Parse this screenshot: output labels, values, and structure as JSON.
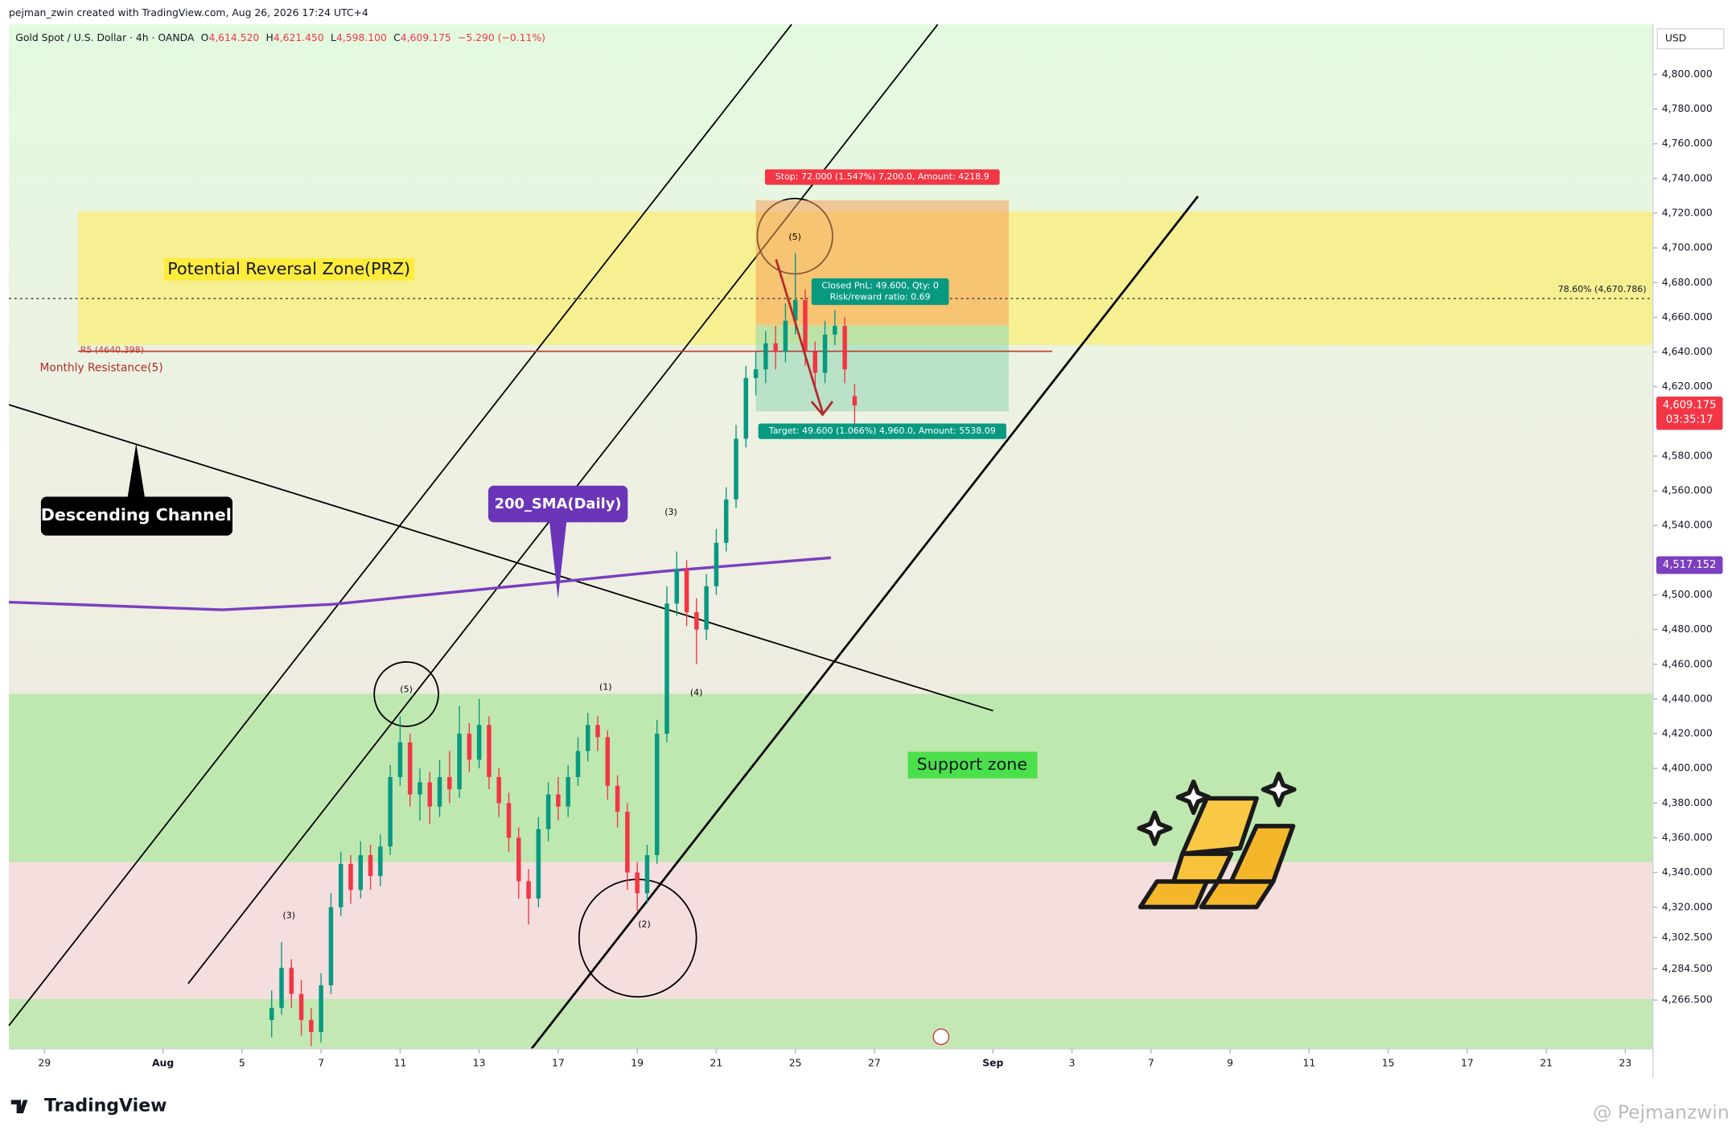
{
  "header": {
    "credit": "pejman_zwin created with TradingView.com, Aug 26, 2026 17:24 UTC+4",
    "symbol": "Gold Spot / U.S. Dollar · 4h · OANDA",
    "ohlc": [
      {
        "key": "O",
        "value": "4,614.520"
      },
      {
        "key": "H",
        "value": "4,621.450"
      },
      {
        "key": "L",
        "value": "4,598.100"
      },
      {
        "key": "C",
        "value": "4,609.175"
      }
    ],
    "change": "−5.290 (−0.11%)"
  },
  "chart_data": {
    "type": "candlestick",
    "currency": "USD",
    "xlim": [
      -0.9,
      40.7
    ],
    "ylim": [
      4238.3,
      4828.8
    ],
    "xticks": [
      {
        "value": 0,
        "label": "29"
      },
      {
        "value": 3,
        "label": "Aug"
      },
      {
        "value": 5,
        "label": "5"
      },
      {
        "value": 7,
        "label": "7"
      },
      {
        "value": 9,
        "label": "11"
      },
      {
        "value": 11,
        "label": "13"
      },
      {
        "value": 13,
        "label": "17"
      },
      {
        "value": 15,
        "label": "19"
      },
      {
        "value": 17,
        "label": "21"
      },
      {
        "value": 19,
        "label": "25"
      },
      {
        "value": 21,
        "label": "27"
      },
      {
        "value": 24,
        "label": "Sep"
      },
      {
        "value": 26,
        "label": "3"
      },
      {
        "value": 28,
        "label": "7"
      },
      {
        "value": 30,
        "label": "9"
      },
      {
        "value": 32,
        "label": "11"
      },
      {
        "value": 34,
        "label": "15"
      },
      {
        "value": 36,
        "label": "17"
      },
      {
        "value": 38,
        "label": "21"
      },
      {
        "value": 40,
        "label": "23"
      }
    ],
    "yticks": [
      {
        "value": 4800,
        "label": "4,800.000"
      },
      {
        "value": 4780,
        "label": "4,780.000"
      },
      {
        "value": 4760,
        "label": "4,760.000"
      },
      {
        "value": 4740,
        "label": "4,740.000"
      },
      {
        "value": 4720,
        "label": "4,720.000"
      },
      {
        "value": 4700,
        "label": "4,700.000"
      },
      {
        "value": 4680,
        "label": "4,680.000"
      },
      {
        "value": 4660,
        "label": "4,660.000"
      },
      {
        "value": 4640,
        "label": "4,640.000"
      },
      {
        "value": 4620,
        "label": "4,620.000"
      },
      {
        "value": 4580,
        "label": "4,580.000"
      },
      {
        "value": 4560,
        "label": "4,560.000"
      },
      {
        "value": 4540,
        "label": "4,540.000"
      },
      {
        "value": 4500,
        "label": "4,500.000"
      },
      {
        "value": 4480,
        "label": "4,480.000"
      },
      {
        "value": 4460,
        "label": "4,460.000"
      },
      {
        "value": 4440,
        "label": "4,440.000"
      },
      {
        "value": 4420,
        "label": "4,420.000"
      },
      {
        "value": 4400,
        "label": "4,400.000"
      },
      {
        "value": 4380,
        "label": "4,380.000"
      },
      {
        "value": 4360,
        "label": "4,360.000"
      },
      {
        "value": 4340,
        "label": "4,340.000"
      },
      {
        "value": 4320,
        "label": "4,320.000"
      },
      {
        "value": 4302.5,
        "label": "4,302.500"
      },
      {
        "value": 4284.5,
        "label": "4,284.500"
      },
      {
        "value": 4266.5,
        "label": "4,266.500"
      }
    ],
    "colors": {
      "up": "#089981",
      "down": "#f23645"
    },
    "candles": {
      "x": [
        5.75,
        6,
        6.25,
        6.5,
        6.75,
        7,
        7.25,
        7.5,
        7.75,
        8,
        8.25,
        8.5,
        8.75,
        9,
        9.25,
        9.5,
        9.75,
        10,
        10.25,
        10.5,
        10.75,
        11,
        11.25,
        11.5,
        11.75,
        12,
        12.25,
        12.5,
        12.75,
        13,
        13.25,
        13.5,
        13.75,
        14,
        14.25,
        14.5,
        14.75,
        15,
        15.25,
        15.5,
        15.75,
        16,
        16.25,
        16.5,
        16.75,
        17,
        17.25,
        17.5,
        17.75,
        18,
        18.25,
        18.5,
        18.75,
        19,
        19.25,
        19.5,
        19.75,
        20,
        20.25,
        20.5
      ],
      "open": [
        4255,
        4262,
        4285,
        4270,
        4255,
        4248,
        4275,
        4320,
        4345,
        4330,
        4350,
        4338,
        4355,
        4395,
        4415,
        4385,
        4392,
        4378,
        4395,
        4388,
        4420,
        4405,
        4425,
        4395,
        4380,
        4360,
        4335,
        4325,
        4365,
        4385,
        4378,
        4395,
        4410,
        4425,
        4418,
        4390,
        4375,
        4340,
        4328,
        4350,
        4420,
        4495,
        4515,
        4490,
        4480,
        4505,
        4530,
        4555,
        4590,
        4625,
        4630,
        4645,
        4640,
        4658,
        4670,
        4640,
        4628,
        4650,
        4655,
        4614.52
      ],
      "high": [
        4272,
        4300,
        4290,
        4278,
        4262,
        4282,
        4328,
        4352,
        4350,
        4358,
        4356,
        4362,
        4402,
        4430,
        4420,
        4400,
        4398,
        4405,
        4410,
        4436,
        4426,
        4440,
        4430,
        4400,
        4386,
        4366,
        4342,
        4372,
        4392,
        4395,
        4402,
        4418,
        4432,
        4430,
        4422,
        4396,
        4380,
        4346,
        4356,
        4428,
        4505,
        4525,
        4520,
        4498,
        4512,
        4538,
        4562,
        4598,
        4632,
        4640,
        4652,
        4655,
        4668,
        4697,
        4676,
        4646,
        4658,
        4664,
        4660,
        4621.45
      ],
      "low": [
        4245,
        4258,
        4262,
        4246,
        4240,
        4242,
        4270,
        4315,
        4322,
        4325,
        4330,
        4332,
        4350,
        4390,
        4378,
        4370,
        4368,
        4372,
        4380,
        4383,
        4398,
        4400,
        4388,
        4372,
        4352,
        4325,
        4310,
        4320,
        4358,
        4370,
        4372,
        4390,
        4404,
        4410,
        4382,
        4366,
        4330,
        4318,
        4322,
        4345,
        4415,
        4488,
        4482,
        4460,
        4474,
        4500,
        4525,
        4550,
        4585,
        4615,
        4622,
        4630,
        4634,
        4650,
        4632,
        4620,
        4622,
        4644,
        4622,
        4598.1
      ],
      "close": [
        4262,
        4285,
        4270,
        4255,
        4248,
        4275,
        4320,
        4345,
        4330,
        4350,
        4338,
        4355,
        4395,
        4415,
        4385,
        4392,
        4378,
        4395,
        4388,
        4420,
        4405,
        4425,
        4395,
        4380,
        4360,
        4335,
        4325,
        4365,
        4385,
        4378,
        4395,
        4410,
        4425,
        4418,
        4390,
        4375,
        4340,
        4328,
        4350,
        4420,
        4495,
        4515,
        4490,
        4480,
        4505,
        4530,
        4555,
        4590,
        4625,
        4630,
        4645,
        4640,
        4658,
        4670,
        4640,
        4628,
        4650,
        4655,
        4630,
        4609.175
      ]
    },
    "sma": {
      "name": "200_SMA(Daily)",
      "color": "#7b3fbf",
      "x": [
        -0.9,
        4.5,
        7.3,
        10.1,
        12.9,
        15.7,
        19.9
      ],
      "values": [
        4495.8,
        4491.4,
        4494.6,
        4501,
        4507.3,
        4513.7,
        4521.4
      ],
      "last": {
        "value": 4517.152,
        "label": "4,517.152"
      }
    },
    "last_price": {
      "value": 4609.175,
      "label": "4,609.175"
    },
    "countdown": "03:35:17",
    "prz": {
      "label": "Potential Reversal Zone(PRZ)",
      "from": 4644,
      "to": 4721,
      "x": [
        0.85,
        40.7
      ]
    },
    "support": {
      "label": "Support zone",
      "from": 4346,
      "to": 4443
    },
    "r5": {
      "value": 4640.398,
      "label": "R5 (4640.398)",
      "x": [
        0.85,
        25.5
      ]
    },
    "monthly_resistance": "Monthly Resistance(5)",
    "fib": {
      "value": 4670.786,
      "label": "78.60% (4,670.786)"
    },
    "position": {
      "x": [
        18,
        24.4
      ],
      "entry": 4655.4,
      "stop": 4727.4,
      "target": 4605.8,
      "stop_label": "Stop: 72.000 (1.547%) 7,200.0, Amount: 4218.9",
      "target_label": "Target: 49.600 (1.066%) 4,960.0, Amount: 5538.09",
      "pnl_label": "Closed PnL: 49.600, Qty: 0",
      "rr_label": "Risk/reward ratio: 0.69"
    },
    "descending_channel": "Descending Channel",
    "waves": [
      "(5)",
      "(3)",
      "(1)",
      "(4)",
      "(2)",
      "(3)",
      "(5)"
    ]
  },
  "footer": {
    "logo": "TradingView",
    "watermark": "@ Pejmanzwin"
  }
}
